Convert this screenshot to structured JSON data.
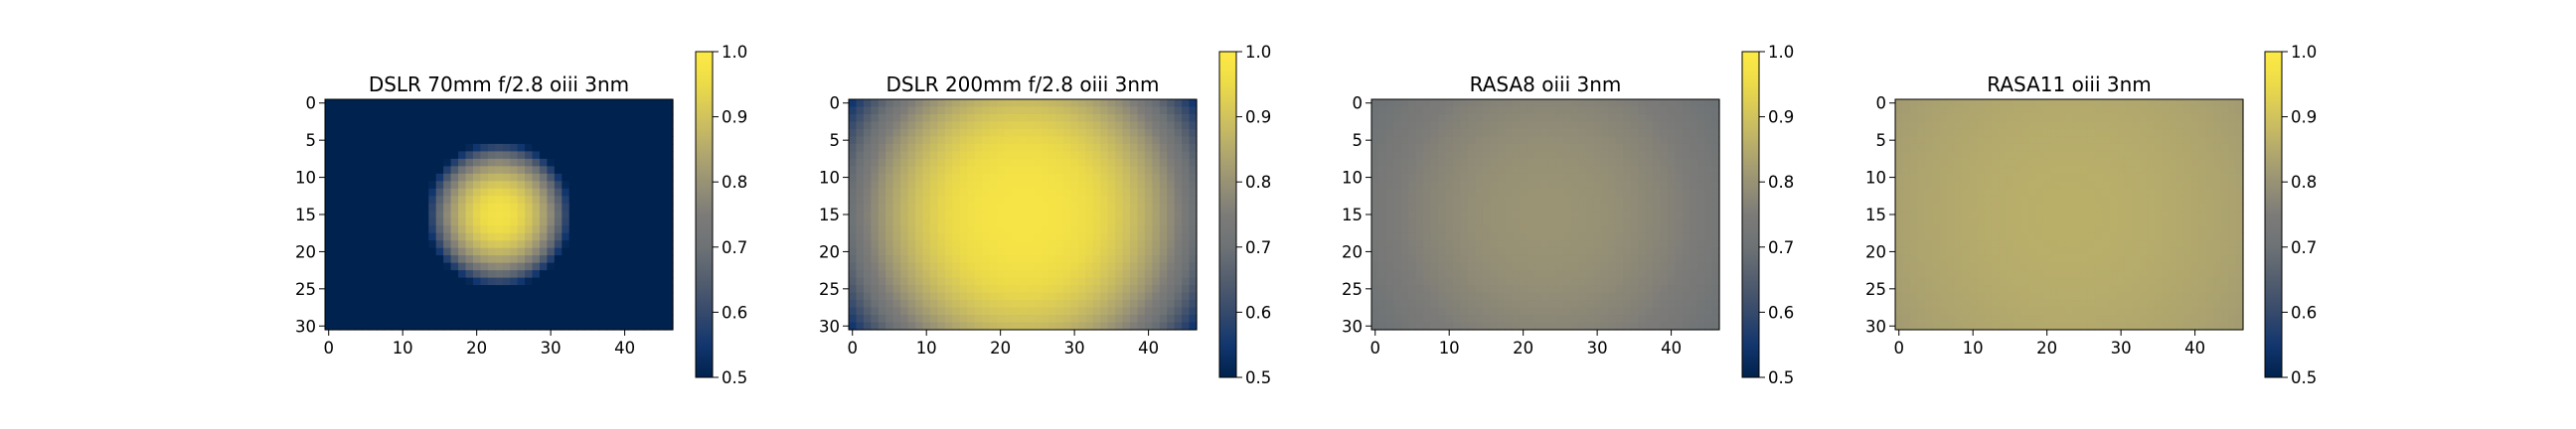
{
  "chart_data": [
    {
      "type": "heatmap",
      "title": "DSLR 70mm f/2.8 oiii 3nm",
      "rows": 31,
      "cols": 47,
      "xlim": [
        0,
        46
      ],
      "ylim": [
        0,
        30
      ],
      "x_ticks": [
        "0",
        "10",
        "20",
        "30",
        "40"
      ],
      "y_ticks": [
        "0",
        "5",
        "10",
        "15",
        "20",
        "25",
        "30"
      ],
      "colormap": "cividis",
      "color_range": [
        0.5,
        1.0
      ],
      "colorbar_ticks": [
        "0.5",
        "0.6",
        "0.7",
        "0.8",
        "0.9",
        "1.0"
      ],
      "field": {
        "center_x": 23,
        "center_y": 15,
        "peak": 0.97,
        "floor": 0.5,
        "radius": 7,
        "edge_width": 3
      }
    },
    {
      "type": "heatmap",
      "title": "DSLR 200mm f/2.8 oiii 3nm",
      "rows": 31,
      "cols": 47,
      "xlim": [
        0,
        46
      ],
      "ylim": [
        0,
        30
      ],
      "x_ticks": [
        "0",
        "10",
        "20",
        "30",
        "40"
      ],
      "y_ticks": [
        "0",
        "5",
        "10",
        "15",
        "20",
        "25",
        "30"
      ],
      "colormap": "cividis",
      "color_range": [
        0.5,
        1.0
      ],
      "colorbar_ticks": [
        "0.5",
        "0.6",
        "0.7",
        "0.8",
        "0.9",
        "1.0"
      ],
      "field": {
        "center_x": 23,
        "center_y": 15,
        "peak": 0.98,
        "corner": 0.55,
        "exponent": 2.5
      }
    },
    {
      "type": "heatmap",
      "title": "RASA8 oiii 3nm",
      "rows": 31,
      "cols": 47,
      "xlim": [
        0,
        46
      ],
      "ylim": [
        0,
        30
      ],
      "x_ticks": [
        "0",
        "10",
        "20",
        "30",
        "40"
      ],
      "y_ticks": [
        "0",
        "5",
        "10",
        "15",
        "20",
        "25",
        "30"
      ],
      "colormap": "cividis",
      "color_range": [
        0.5,
        1.0
      ],
      "colorbar_ticks": [
        "0.5",
        "0.6",
        "0.7",
        "0.8",
        "0.9",
        "1.0"
      ],
      "field": {
        "center_x": 23,
        "center_y": 15,
        "peak": 0.805,
        "corner": 0.7,
        "exponent": 2
      }
    },
    {
      "type": "heatmap",
      "title": "RASA11 oiii 3nm",
      "rows": 31,
      "cols": 47,
      "xlim": [
        0,
        46
      ],
      "ylim": [
        0,
        30
      ],
      "x_ticks": [
        "0",
        "10",
        "20",
        "30",
        "40"
      ],
      "y_ticks": [
        "0",
        "5",
        "10",
        "15",
        "20",
        "25",
        "30"
      ],
      "colormap": "cividis",
      "color_range": [
        0.5,
        1.0
      ],
      "colorbar_ticks": [
        "0.5",
        "0.6",
        "0.7",
        "0.8",
        "0.9",
        "1.0"
      ],
      "field": {
        "center_x": 23,
        "center_y": 15,
        "peak": 0.86,
        "corner": 0.82,
        "exponent": 2
      }
    }
  ]
}
